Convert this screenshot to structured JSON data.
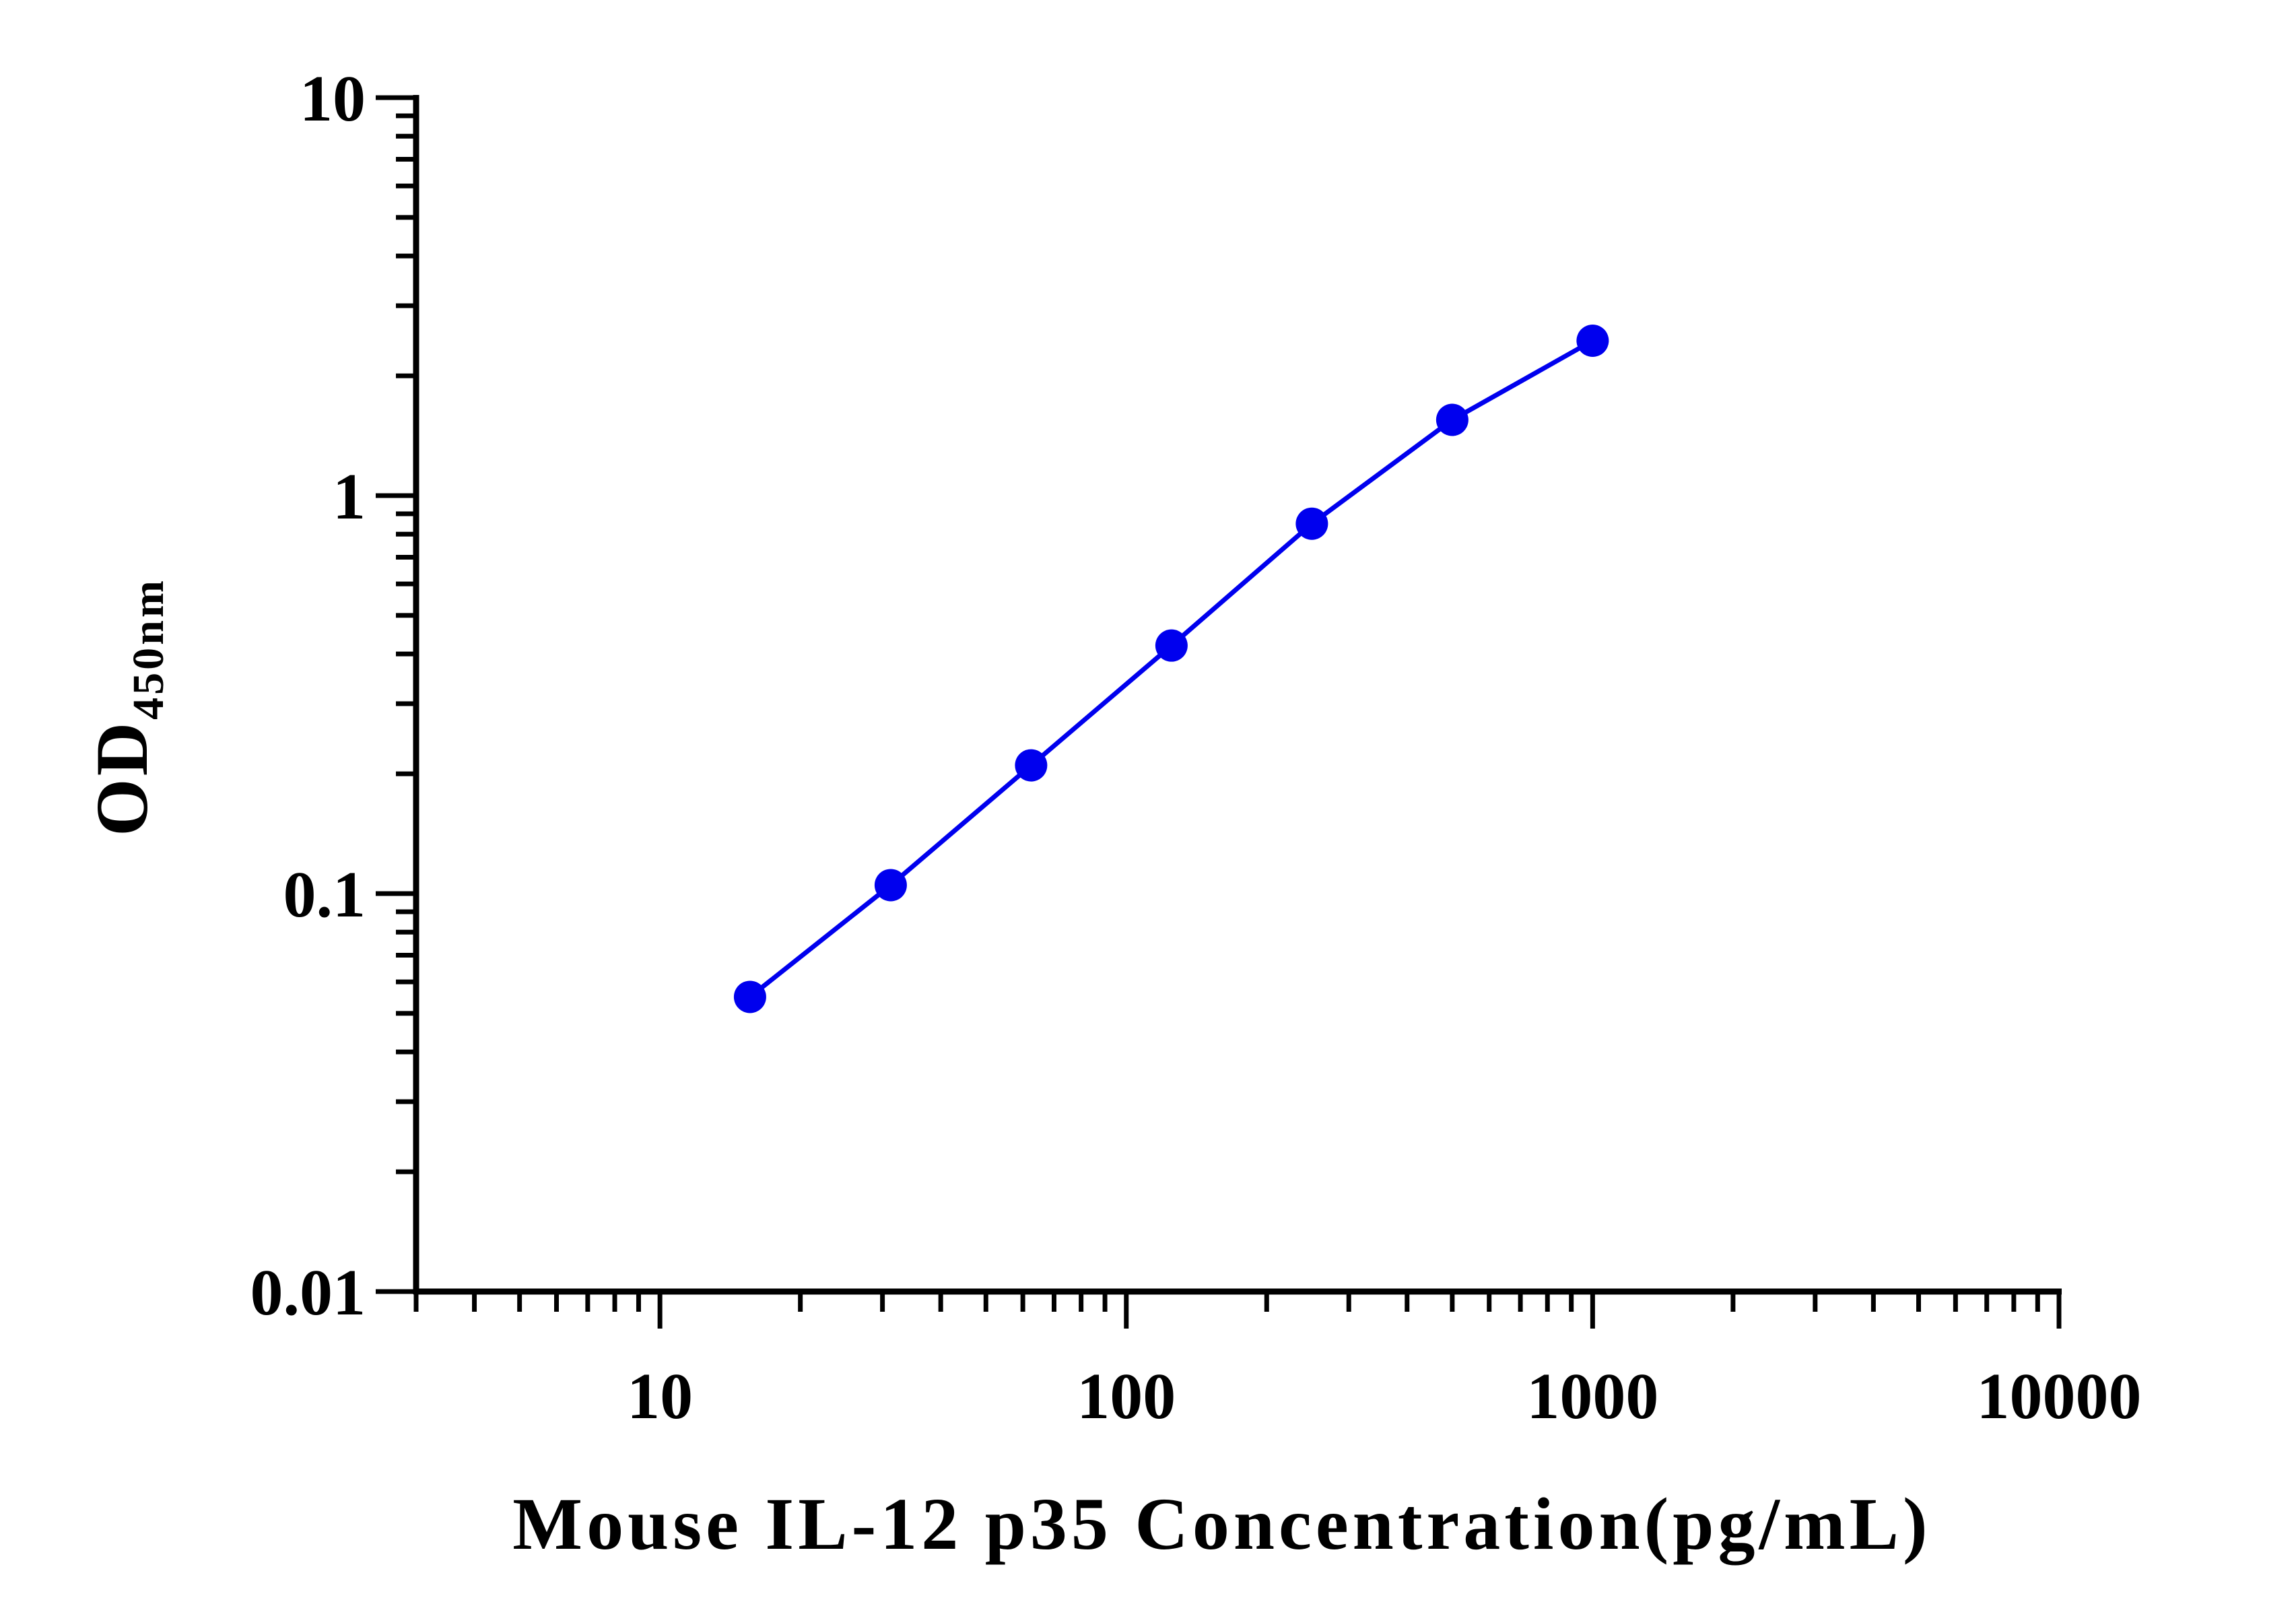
{
  "colors": {
    "series": "#0000ee",
    "axis": "#000000",
    "background": "#ffffff"
  },
  "chart_data": {
    "type": "line",
    "title": "",
    "xlabel": "Mouse IL-12 p35 Concentration(pg/mL)",
    "ylabel": {
      "main": "OD",
      "subscript": "450nm"
    },
    "x_scale": "log",
    "y_scale": "log",
    "xlim": [
      3,
      10000
    ],
    "ylim": [
      0.01,
      10
    ],
    "x_ticks": [
      {
        "value": 10,
        "label": "10"
      },
      {
        "value": 100,
        "label": "100"
      },
      {
        "value": 1000,
        "label": "1000"
      },
      {
        "value": 10000,
        "label": "10000"
      }
    ],
    "y_ticks": [
      {
        "value": 0.01,
        "label": "0.01"
      },
      {
        "value": 0.1,
        "label": "0.1"
      },
      {
        "value": 1,
        "label": "1"
      },
      {
        "value": 10,
        "label": "10"
      }
    ],
    "grid": false,
    "legend": "none",
    "series": [
      {
        "marker": "circle",
        "x": [
          15.6,
          31.25,
          62.5,
          125,
          250,
          500,
          1000
        ],
        "y": [
          0.055,
          0.105,
          0.21,
          0.42,
          0.85,
          1.55,
          2.45
        ]
      }
    ]
  }
}
